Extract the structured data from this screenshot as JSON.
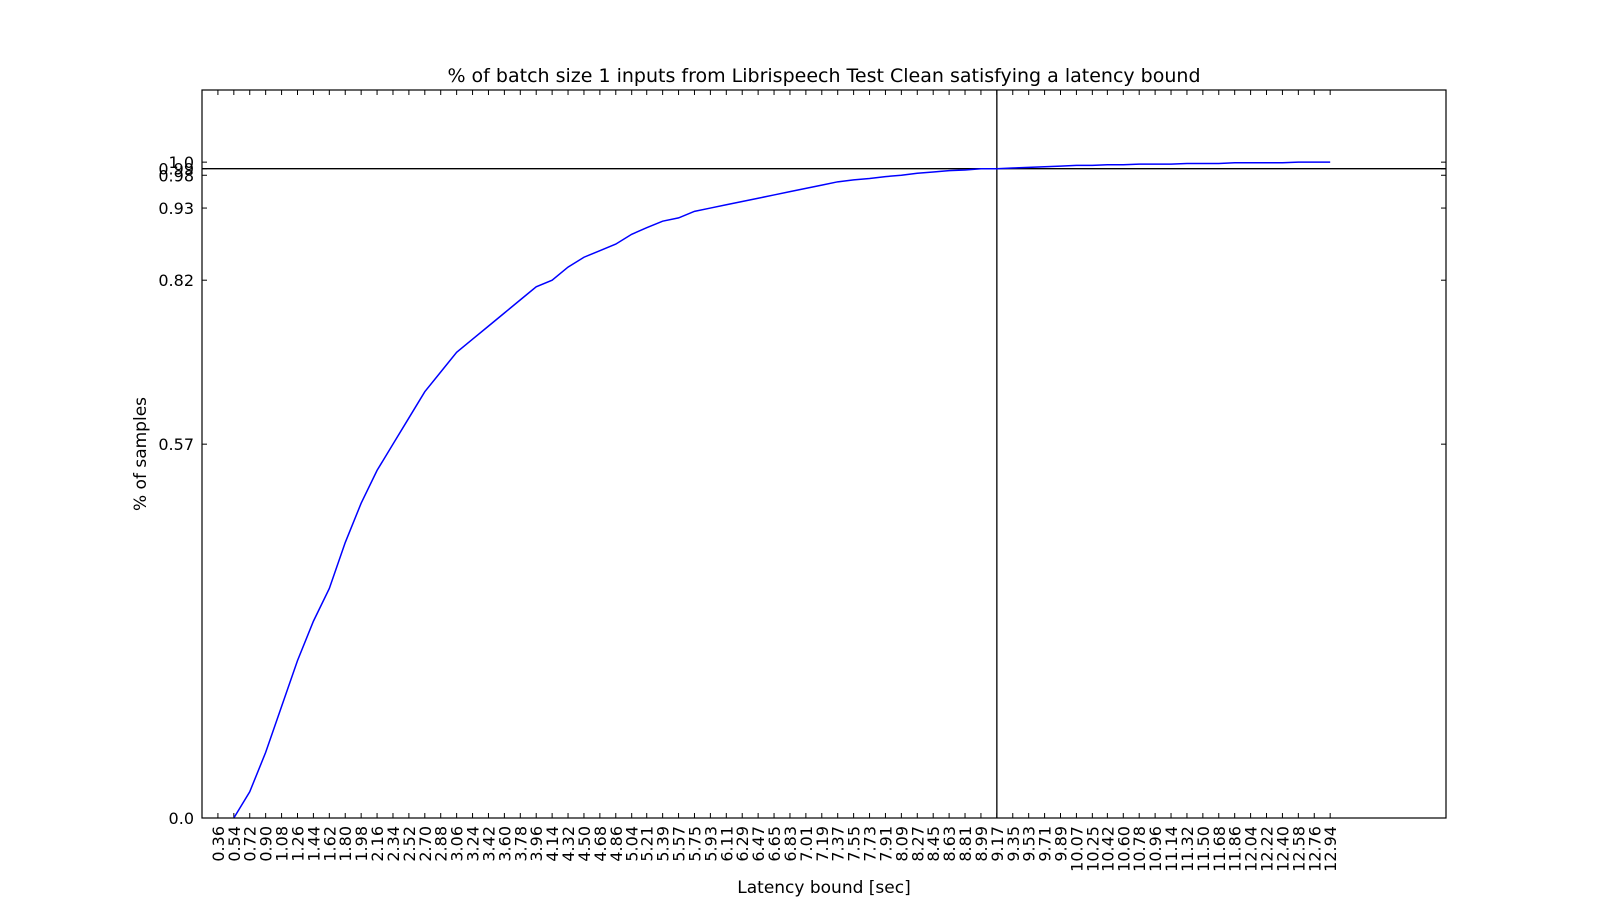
{
  "chart_data": {
    "type": "line",
    "title": "% of batch size 1 inputs from Librispeech Test Clean satisfying a latency bound",
    "xlabel": "Latency bound [sec]",
    "ylabel": "% of samples",
    "x": [
      "0.36",
      "0.54",
      "0.72",
      "0.90",
      "1.08",
      "1.26",
      "1.44",
      "1.62",
      "1.80",
      "1.98",
      "2.16",
      "2.34",
      "2.52",
      "2.70",
      "2.88",
      "3.06",
      "3.24",
      "3.42",
      "3.60",
      "3.78",
      "3.96",
      "4.14",
      "4.32",
      "4.50",
      "4.68",
      "4.86",
      "5.04",
      "5.21",
      "5.39",
      "5.57",
      "5.75",
      "5.93",
      "6.11",
      "6.29",
      "6.47",
      "6.65",
      "6.83",
      "7.01",
      "7.19",
      "7.37",
      "7.55",
      "7.73",
      "7.91",
      "8.09",
      "8.27",
      "8.45",
      "8.63",
      "8.81",
      "8.99",
      "9.17",
      "9.35",
      "9.53",
      "9.71",
      "9.89",
      "10.07",
      "10.25",
      "10.42",
      "10.60",
      "10.78",
      "10.96",
      "11.14",
      "11.32",
      "11.50",
      "11.68",
      "11.86",
      "12.04",
      "12.22",
      "12.40",
      "12.58",
      "12.76",
      "12.94"
    ],
    "xlim": [
      0.18,
      14.25
    ],
    "ylim": [
      0.0,
      1.11
    ],
    "yticks": [
      "0.0",
      "0.57",
      "0.82",
      "0.93",
      "0.98",
      "0.99",
      "1.0"
    ],
    "series": [
      {
        "values": [
          null,
          0.0,
          0.04,
          0.1,
          0.17,
          0.24,
          0.3,
          0.35,
          0.42,
          0.48,
          0.53,
          0.57,
          0.61,
          0.65,
          0.68,
          0.71,
          0.73,
          0.75,
          0.77,
          0.79,
          0.81,
          0.82,
          0.84,
          0.855,
          0.865,
          0.875,
          0.89,
          0.9,
          0.91,
          0.915,
          0.925,
          0.93,
          0.935,
          0.94,
          0.945,
          0.95,
          0.955,
          0.96,
          0.965,
          0.97,
          0.973,
          0.975,
          0.978,
          0.98,
          0.983,
          0.985,
          0.987,
          0.988,
          0.99,
          0.99,
          0.991,
          0.992,
          0.993,
          0.994,
          0.995,
          0.995,
          0.996,
          0.996,
          0.997,
          0.997,
          0.997,
          0.998,
          0.998,
          0.998,
          0.999,
          0.999,
          0.999,
          0.999,
          1.0,
          1.0,
          1.0
        ]
      }
    ],
    "reference_lines": {
      "x": 9.17,
      "y": 0.99
    },
    "grid": false,
    "colors": {
      "line": "#0000ff",
      "axes": "#000000"
    }
  }
}
